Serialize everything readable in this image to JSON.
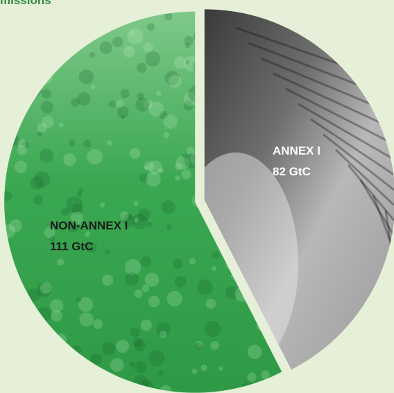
{
  "chart_data": {
    "type": "pie",
    "title": "missions",
    "slices": [
      {
        "label": "ANNEX I",
        "value_text": "82 GtC",
        "value": 82,
        "color": "#8a8a8a"
      },
      {
        "label": "NON-ANNEX I",
        "value_text": "111 GtC",
        "value": 111,
        "color": "#33a64c"
      }
    ],
    "background_color": "#e6f0d8"
  }
}
